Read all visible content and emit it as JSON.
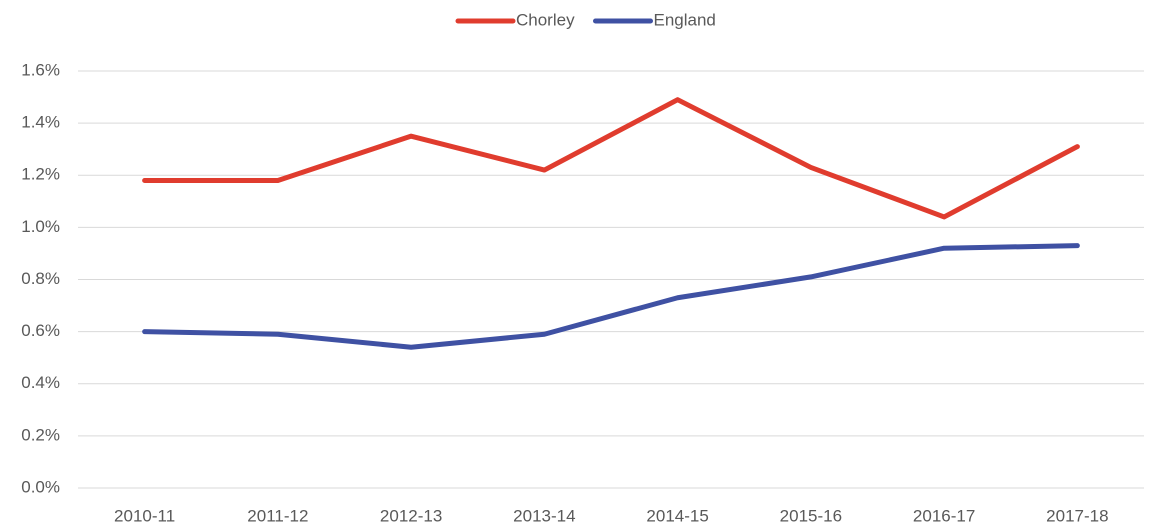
{
  "chart_data": {
    "type": "line",
    "categories": [
      "2010-11",
      "2011-12",
      "2012-13",
      "2013-14",
      "2014-15",
      "2015-16",
      "2016-17",
      "2017-18"
    ],
    "series": [
      {
        "name": "Chorley",
        "color": "#e03c2e",
        "values": [
          1.18,
          1.18,
          1.35,
          1.22,
          1.49,
          1.23,
          1.04,
          1.31
        ]
      },
      {
        "name": "England",
        "color": "#3f51a3",
        "values": [
          0.6,
          0.59,
          0.54,
          0.59,
          0.73,
          0.81,
          0.92,
          0.93
        ]
      }
    ],
    "ylim": [
      0,
      1.6
    ],
    "yticks": [
      {
        "value": 0,
        "label": "0.0%"
      },
      {
        "value": 0.2,
        "label": "0.2%"
      },
      {
        "value": 0.4,
        "label": "0.4%"
      },
      {
        "value": 0.6,
        "label": "0.6%"
      },
      {
        "value": 0.8,
        "label": "0.8%"
      },
      {
        "value": 1.0,
        "label": "1.0%"
      },
      {
        "value": 1.2,
        "label": "1.2%"
      },
      {
        "value": 1.4,
        "label": "1.4%"
      },
      {
        "value": 1.6,
        "label": "1.6%"
      }
    ],
    "grid": true,
    "legend": "top"
  }
}
